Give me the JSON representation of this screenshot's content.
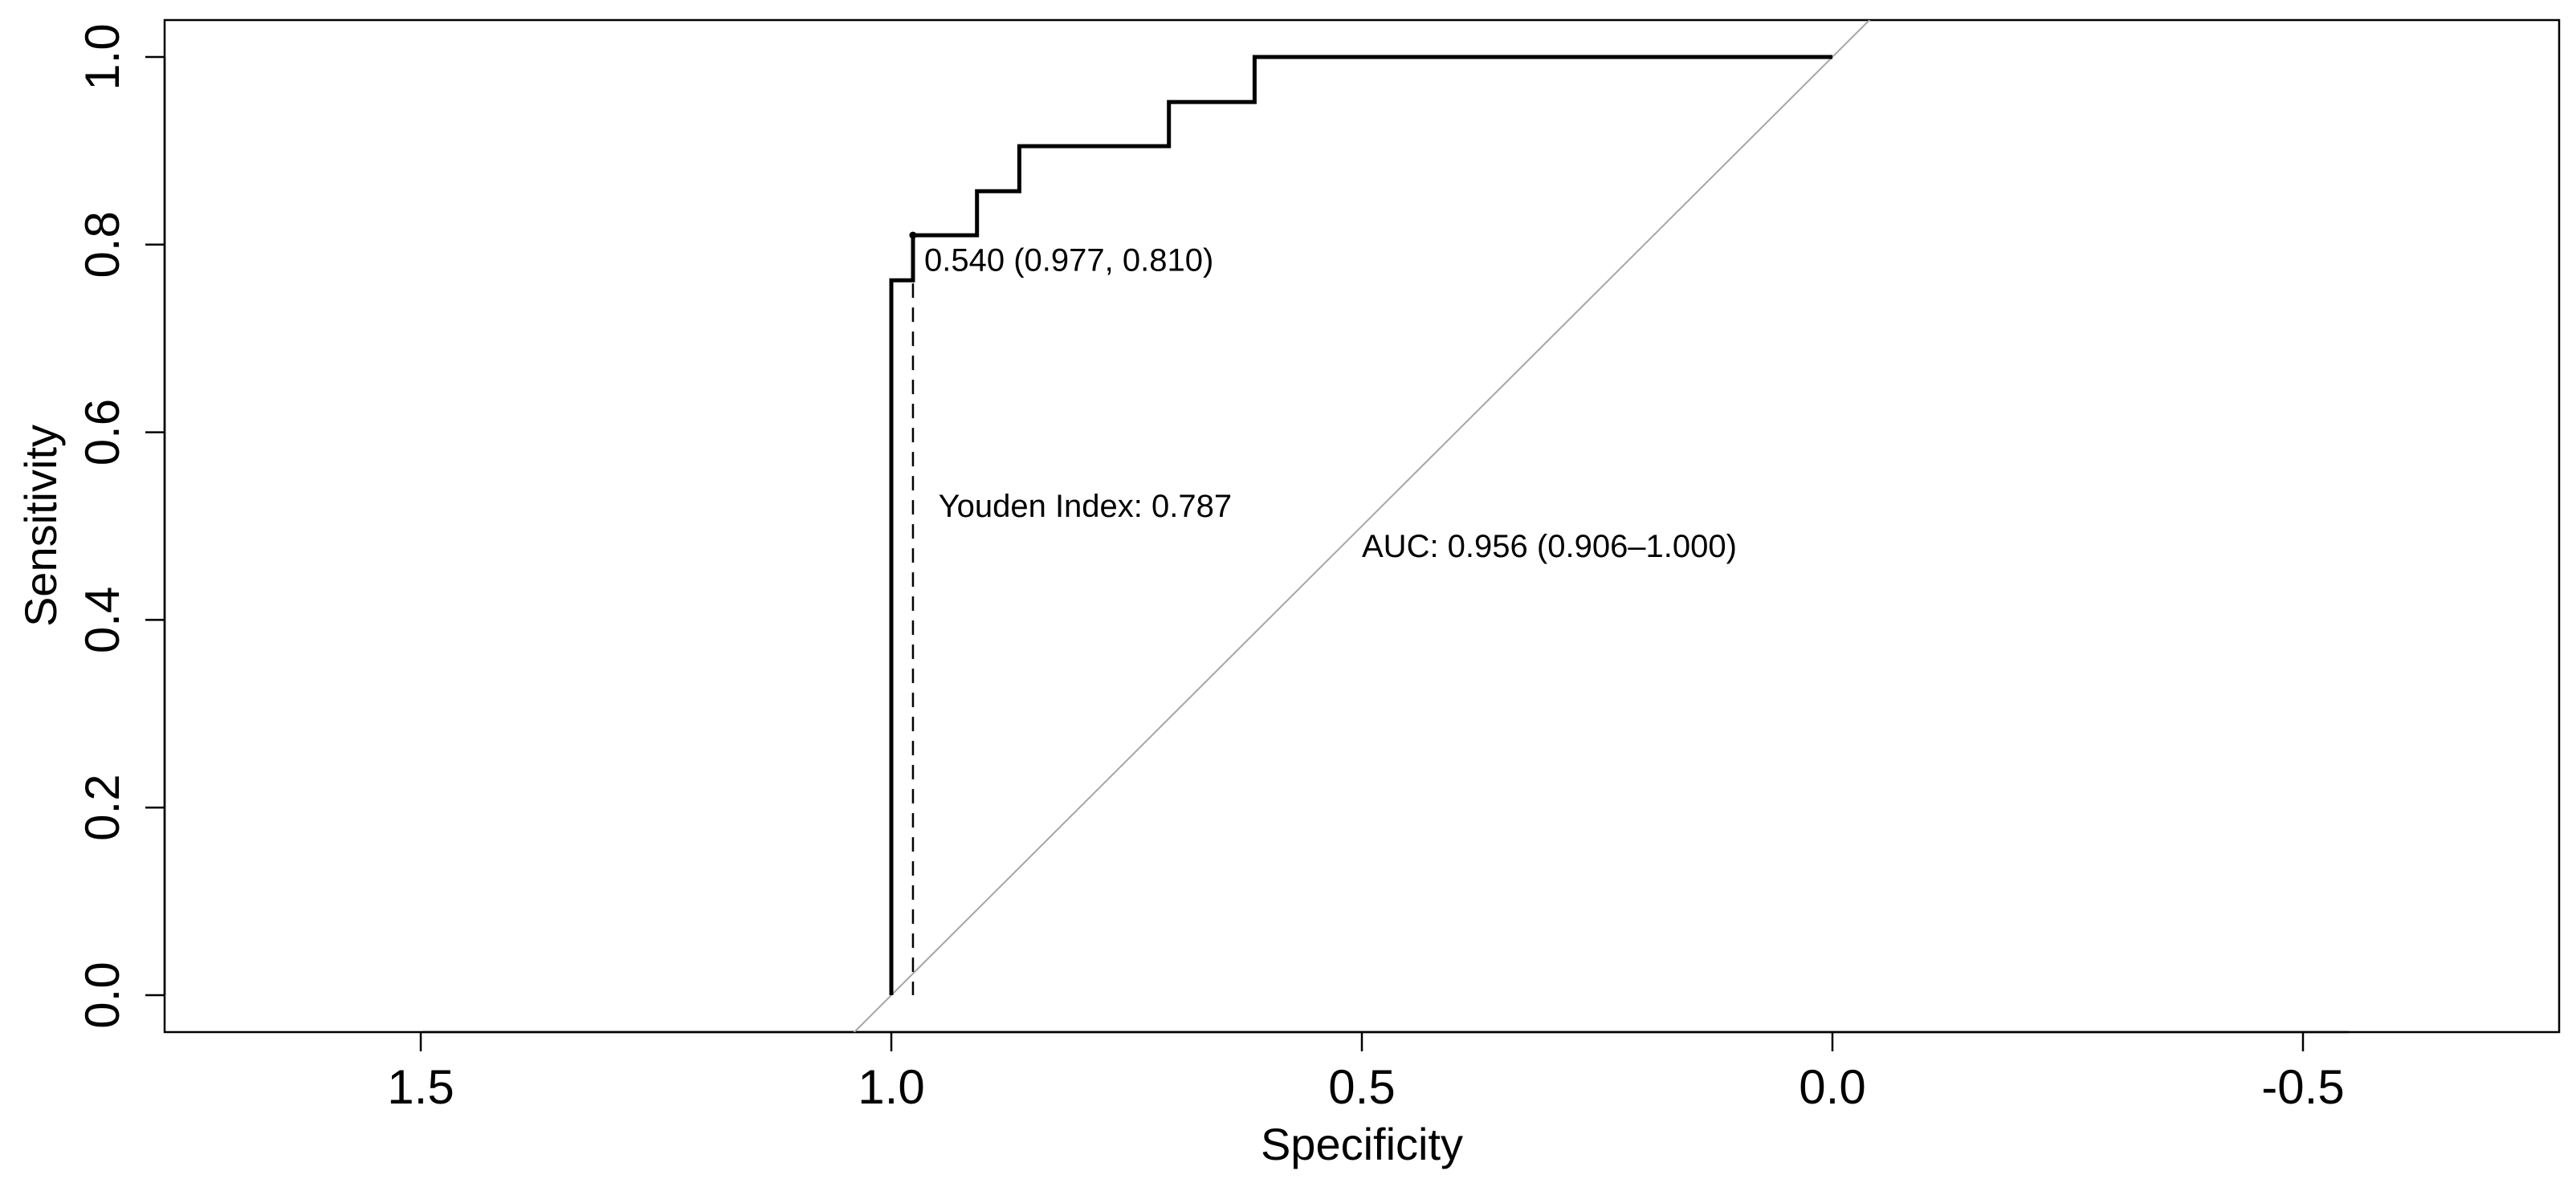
{
  "chart_data": {
    "type": "line",
    "title": "",
    "xlabel": "Specificity",
    "ylabel": "Sensitivity",
    "xlim": [
      1.75,
      -0.75
    ],
    "ylim": [
      -0.04,
      1.04
    ],
    "x_reversed": true,
    "x_ticks": [
      1.5,
      1.0,
      0.5,
      0.0,
      -0.5
    ],
    "x_tick_labels": [
      "1.5",
      "1.0",
      "0.5",
      "0.0",
      "-0.5"
    ],
    "y_ticks": [
      0.0,
      0.2,
      0.4,
      0.6,
      0.8,
      1.0
    ],
    "y_tick_labels": [
      "0.0",
      "0.2",
      "0.4",
      "0.6",
      "0.8",
      "1.0"
    ],
    "grid": false,
    "series": [
      {
        "name": "ROC curve",
        "x": [
          1.0,
          1.0,
          0.977,
          0.977,
          0.909,
          0.909,
          0.864,
          0.864,
          0.705,
          0.705,
          0.614,
          0.614,
          0.0
        ],
        "y": [
          0.0,
          0.762,
          0.762,
          0.81,
          0.81,
          0.857,
          0.857,
          0.905,
          0.905,
          0.952,
          0.952,
          1.0,
          1.0
        ]
      }
    ],
    "reference_line": {
      "name": "chance diagonal",
      "x": [
        1.04,
        -0.04
      ],
      "y": [
        -0.04,
        1.04
      ]
    },
    "best_threshold": {
      "threshold": 0.54,
      "specificity": 0.977,
      "sensitivity": 0.81,
      "label": "0.540 (0.977, 0.810)"
    },
    "annotations": {
      "youden": "Youden Index: 0.787",
      "auc": "AUC: 0.956 (0.906–1.000)"
    }
  }
}
